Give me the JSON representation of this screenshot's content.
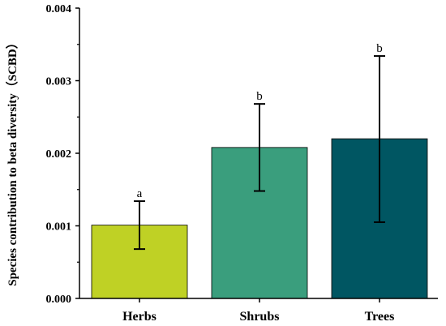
{
  "chart_data": {
    "type": "bar",
    "categories": [
      "Herbs",
      "Shrubs",
      "Trees"
    ],
    "values": [
      0.00101,
      0.00208,
      0.0022
    ],
    "errors_low": [
      0.00068,
      0.00148,
      0.00105
    ],
    "errors_high": [
      0.00134,
      0.00268,
      0.00334
    ],
    "significance_labels": [
      "a",
      "b",
      "b"
    ],
    "colors": [
      "#bfd125",
      "#3a9e7d",
      "#005662"
    ],
    "title": "",
    "xlabel": "",
    "ylabel": "Species contribution to beta diversity（SCBD）",
    "ylim": [
      0,
      0.004
    ],
    "yticks": [
      "0.000",
      "0.001",
      "0.002",
      "0.003",
      "0.004"
    ],
    "grid": false,
    "legend": "none"
  }
}
